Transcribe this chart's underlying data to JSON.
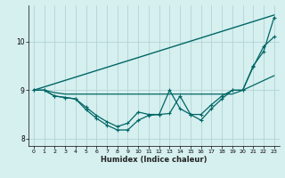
{
  "xlabel": "Humidex (Indice chaleur)",
  "background_color": "#d6efef",
  "grid_color": "#b0d5d5",
  "line_color": "#006666",
  "xlim": [
    -0.5,
    23.5
  ],
  "ylim": [
    7.85,
    10.75
  ],
  "yticks": [
    8,
    9,
    10
  ],
  "xticks": [
    0,
    1,
    2,
    3,
    4,
    5,
    6,
    7,
    8,
    9,
    10,
    11,
    12,
    13,
    14,
    15,
    16,
    17,
    18,
    19,
    20,
    21,
    22,
    23
  ],
  "series": [
    {
      "x": [
        0,
        23
      ],
      "y": [
        9.0,
        10.55
      ],
      "marker": false,
      "lw": 1.0
    },
    {
      "x": [
        0,
        1,
        2,
        3,
        4,
        5,
        6,
        7,
        8,
        9,
        10,
        11,
        12,
        13,
        14,
        15,
        16,
        17,
        18,
        19,
        20,
        21,
        22,
        23
      ],
      "y": [
        9.0,
        9.0,
        8.95,
        8.92,
        8.92,
        8.92,
        8.92,
        8.92,
        8.92,
        8.92,
        8.92,
        8.92,
        8.92,
        8.92,
        8.92,
        8.92,
        8.92,
        8.92,
        8.92,
        8.92,
        9.0,
        9.1,
        9.2,
        9.3
      ],
      "marker": false,
      "lw": 0.9
    },
    {
      "x": [
        0,
        1,
        2,
        3,
        4,
        5,
        6,
        7,
        8,
        9,
        10,
        11,
        12,
        13,
        14,
        15,
        16,
        17,
        18,
        19,
        20,
        21,
        22,
        23
      ],
      "y": [
        9.0,
        9.0,
        8.88,
        8.85,
        8.82,
        8.6,
        8.42,
        8.28,
        8.18,
        8.18,
        8.38,
        8.48,
        8.5,
        9.0,
        8.62,
        8.5,
        8.5,
        8.7,
        8.88,
        9.0,
        9.0,
        9.48,
        9.9,
        10.1
      ],
      "marker": true,
      "lw": 0.9
    },
    {
      "x": [
        0,
        1,
        2,
        3,
        4,
        5,
        6,
        7,
        8,
        9,
        10,
        11,
        12,
        13,
        14,
        15,
        16,
        17,
        18,
        19,
        20,
        21,
        22,
        23
      ],
      "y": [
        9.0,
        9.0,
        8.88,
        8.85,
        8.82,
        8.65,
        8.48,
        8.35,
        8.25,
        8.32,
        8.55,
        8.5,
        8.5,
        8.52,
        8.88,
        8.5,
        8.38,
        8.62,
        8.82,
        9.0,
        9.0,
        9.5,
        9.8,
        10.5
      ],
      "marker": true,
      "lw": 0.9
    }
  ]
}
